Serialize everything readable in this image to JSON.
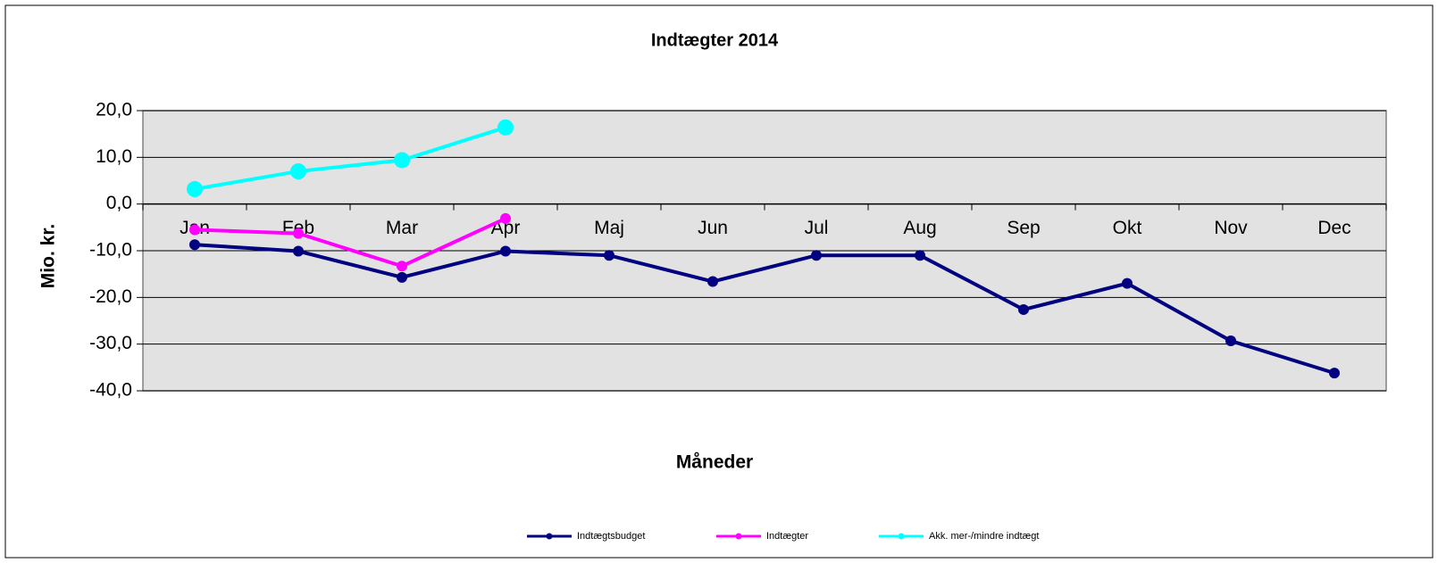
{
  "chart_data": {
    "type": "line",
    "title": "Indtægter 2014",
    "x_label": "Måneder",
    "y_label": "Mio. kr.",
    "categories": [
      "Jan",
      "Feb",
      "Mar",
      "Apr",
      "Maj",
      "Jun",
      "Jul",
      "Aug",
      "Sep",
      "Okt",
      "Nov",
      "Dec"
    ],
    "series": [
      {
        "name": "Indtægtsbudget",
        "color": "#000080",
        "values": [
          -8.7,
          -10.1,
          -15.7,
          -10.1,
          -11.0,
          -16.6,
          -11.0,
          -11.0,
          -22.6,
          -17.0,
          -29.3,
          -36.2
        ]
      },
      {
        "name": "Indtægter",
        "color": "#ff00ff",
        "values": [
          -5.5,
          -6.3,
          -13.3,
          -3.1,
          null,
          null,
          null,
          null,
          null,
          null,
          null,
          null
        ]
      },
      {
        "name": "Akk. mer-/mindre indtægt",
        "color": "#00ffff",
        "values": [
          3.2,
          7.0,
          9.4,
          16.4,
          null,
          null,
          null,
          null,
          null,
          null,
          null,
          null
        ]
      }
    ],
    "ylim": [
      -40,
      20
    ],
    "yticks": [
      {
        "value": -40,
        "label": "-40,0"
      },
      {
        "value": -30,
        "label": "-30,0"
      },
      {
        "value": -20,
        "label": "-20,0"
      },
      {
        "value": -10,
        "label": "-10,0"
      },
      {
        "value": 0,
        "label": "0,0"
      },
      {
        "value": 10,
        "label": "10,0"
      },
      {
        "value": 20,
        "label": "20,0"
      }
    ],
    "grid": true,
    "legend": "bottom"
  }
}
